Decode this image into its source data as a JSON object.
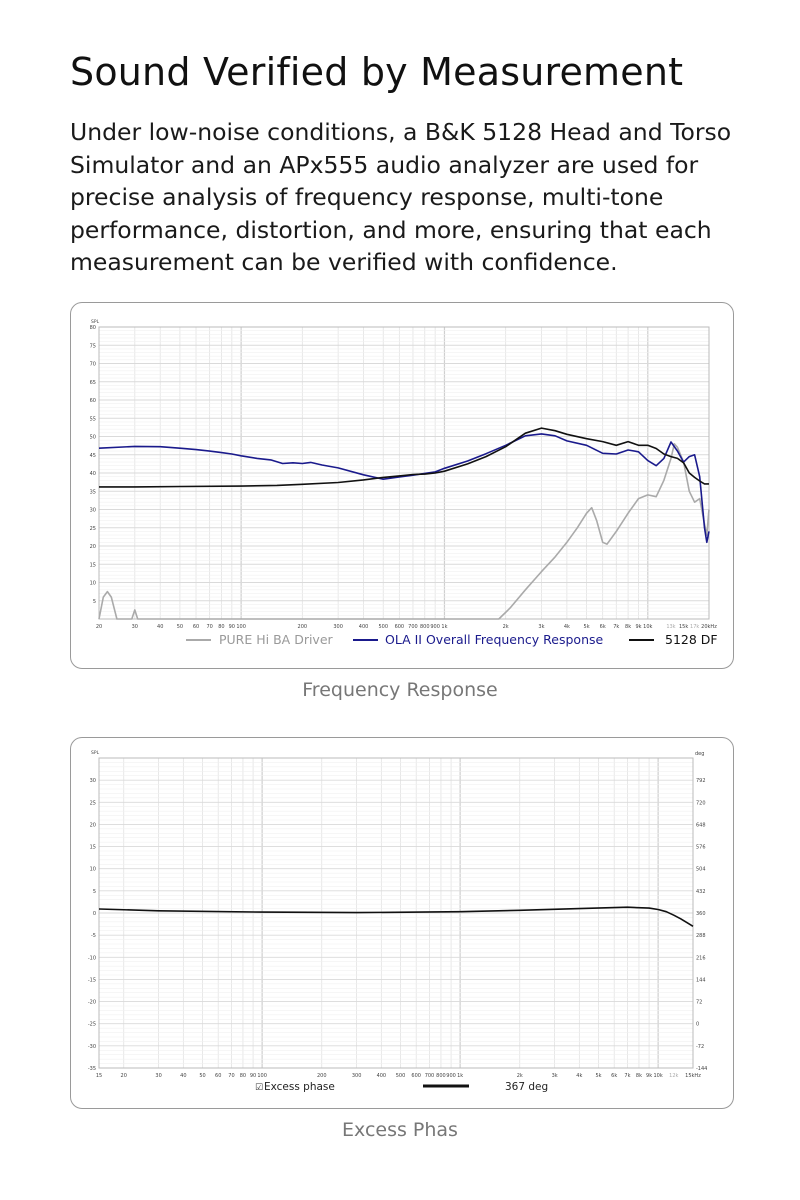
{
  "header": {
    "title": "Sound Verified by Measurement",
    "description": "Under low-noise conditions, a B&K 5128 Head and Torso Simulator and an APx555 audio analyzer are used for precise analysis of frequency response, multi-tone performance, distortion, and more, ensuring that each measurement can be verified with confidence."
  },
  "captions": {
    "chart1": "Frequency Response",
    "chart2": "Excess Phas"
  },
  "colors": {
    "pure": "#aaaaaa",
    "ola": "#1a1a8c",
    "df": "#111111",
    "grid": "#e2e2e2",
    "grid_major": "#cfcfcf"
  },
  "chart_data": [
    {
      "type": "line",
      "title": "",
      "ylabel": "SPL",
      "xlabel": "",
      "x_scale": "log",
      "xlim": [
        20,
        20000
      ],
      "ylim": [
        0,
        80
      ],
      "grid": true,
      "legend_position": "bottom",
      "x_ticks": [
        20,
        30,
        40,
        50,
        60,
        70,
        80,
        90,
        100,
        200,
        300,
        400,
        500,
        600,
        700,
        800,
        900,
        1000,
        2000,
        3000,
        4000,
        5000,
        6000,
        7000,
        8000,
        9000,
        10000,
        13000,
        15000,
        17000,
        20000
      ],
      "x_tick_labels": [
        "20",
        "30",
        "40",
        "50",
        "60",
        "70",
        "80",
        "90",
        "100",
        "200",
        "300",
        "400",
        "500",
        "600",
        "700",
        "800",
        "900",
        "1k",
        "2k",
        "3k",
        "4k",
        "5k",
        "6k",
        "7k",
        "8k",
        "9k",
        "10k",
        "13k",
        "15k",
        "17k",
        "20kHz"
      ],
      "y_ticks": [
        0,
        5,
        10,
        15,
        20,
        25,
        30,
        35,
        40,
        45,
        50,
        55,
        60,
        65,
        70,
        75,
        80
      ],
      "y_tick_labels": [
        "",
        "5",
        "10",
        "15",
        "20",
        "25",
        "30",
        "35",
        "40",
        "45",
        "50",
        "55",
        "60",
        "65",
        "70",
        "75",
        "80"
      ],
      "series": [
        {
          "name": "PURE Hi BA Driver",
          "color": "#aaaaaa",
          "points": [
            [
              20,
              0
            ],
            [
              21,
              6
            ],
            [
              22,
              7.5
            ],
            [
              23,
              6
            ],
            [
              24.5,
              0
            ],
            [
              29,
              0
            ],
            [
              30,
              2.5
            ],
            [
              31,
              0
            ],
            [
              1850,
              0
            ],
            [
              2100,
              3
            ],
            [
              2500,
              8
            ],
            [
              3000,
              13
            ],
            [
              3500,
              17
            ],
            [
              4000,
              21
            ],
            [
              4500,
              25
            ],
            [
              5000,
              29
            ],
            [
              5300,
              30.5
            ],
            [
              5600,
              27
            ],
            [
              6000,
              21
            ],
            [
              6300,
              20.5
            ],
            [
              7000,
              24
            ],
            [
              8000,
              29
            ],
            [
              9000,
              33
            ],
            [
              10000,
              34
            ],
            [
              11000,
              33.5
            ],
            [
              12000,
              38
            ],
            [
              13000,
              44
            ],
            [
              13500,
              48
            ],
            [
              14000,
              47
            ],
            [
              15000,
              43
            ],
            [
              16000,
              35
            ],
            [
              17000,
              32
            ],
            [
              18000,
              33
            ],
            [
              19000,
              26
            ],
            [
              19500,
              23
            ],
            [
              20000,
              30
            ]
          ]
        },
        {
          "name": "OLA II Overall Frequency Response",
          "color": "#1a1a8c",
          "points": [
            [
              20,
              46.8
            ],
            [
              30,
              47.3
            ],
            [
              40,
              47.2
            ],
            [
              50,
              46.8
            ],
            [
              60,
              46.4
            ],
            [
              70,
              46
            ],
            [
              80,
              45.6
            ],
            [
              90,
              45.2
            ],
            [
              100,
              44.7
            ],
            [
              120,
              44
            ],
            [
              140,
              43.6
            ],
            [
              160,
              42.6
            ],
            [
              180,
              42.8
            ],
            [
              200,
              42.6
            ],
            [
              220,
              42.9
            ],
            [
              250,
              42.2
            ],
            [
              300,
              41.4
            ],
            [
              400,
              39.5
            ],
            [
              500,
              38.3
            ],
            [
              600,
              38.9
            ],
            [
              700,
              39.4
            ],
            [
              800,
              39.9
            ],
            [
              900,
              40.3
            ],
            [
              1000,
              41.3
            ],
            [
              1300,
              43.3
            ],
            [
              1600,
              45.3
            ],
            [
              2000,
              47.6
            ],
            [
              2500,
              50.2
            ],
            [
              3000,
              50.7
            ],
            [
              3500,
              50.2
            ],
            [
              4000,
              48.8
            ],
            [
              5000,
              47.6
            ],
            [
              6000,
              45.4
            ],
            [
              7000,
              45.2
            ],
            [
              8000,
              46.3
            ],
            [
              9000,
              45.8
            ],
            [
              10000,
              43.4
            ],
            [
              11000,
              42
            ],
            [
              12000,
              44
            ],
            [
              13000,
              48.5
            ],
            [
              14000,
              46
            ],
            [
              15000,
              43
            ],
            [
              16000,
              44.5
            ],
            [
              17000,
              45
            ],
            [
              18000,
              39
            ],
            [
              19000,
              25
            ],
            [
              19500,
              21
            ],
            [
              20000,
              24
            ]
          ]
        },
        {
          "name": "5128 DF",
          "color": "#111111",
          "points": [
            [
              20,
              36.2
            ],
            [
              30,
              36.2
            ],
            [
              50,
              36.3
            ],
            [
              100,
              36.4
            ],
            [
              150,
              36.6
            ],
            [
              200,
              36.9
            ],
            [
              300,
              37.4
            ],
            [
              400,
              38.1
            ],
            [
              500,
              38.8
            ],
            [
              600,
              39.2
            ],
            [
              700,
              39.6
            ],
            [
              800,
              39.7
            ],
            [
              900,
              40
            ],
            [
              1000,
              40.5
            ],
            [
              1300,
              42.5
            ],
            [
              1600,
              44.5
            ],
            [
              2000,
              47.2
            ],
            [
              2500,
              50.9
            ],
            [
              3000,
              52.3
            ],
            [
              3500,
              51.6
            ],
            [
              4000,
              50.6
            ],
            [
              5000,
              49.4
            ],
            [
              6000,
              48.6
            ],
            [
              7000,
              47.6
            ],
            [
              8000,
              48.6
            ],
            [
              9000,
              47.6
            ],
            [
              10000,
              47.6
            ],
            [
              11000,
              46.7
            ],
            [
              12000,
              45.2
            ],
            [
              13000,
              44.5
            ],
            [
              14000,
              44
            ],
            [
              15000,
              42.8
            ],
            [
              16000,
              40
            ],
            [
              17000,
              38.8
            ],
            [
              18000,
              37.8
            ],
            [
              19000,
              37
            ],
            [
              20000,
              37
            ]
          ]
        }
      ]
    },
    {
      "type": "line",
      "title": "",
      "ylabel": "SPL",
      "y2label": "deg",
      "xlabel": "",
      "x_scale": "log",
      "xlim": [
        15,
        15000
      ],
      "ylim": [
        -35,
        35
      ],
      "grid": true,
      "legend_position": "bottom",
      "x_ticks": [
        15,
        20,
        30,
        40,
        50,
        60,
        70,
        80,
        90,
        100,
        200,
        300,
        400,
        500,
        600,
        700,
        800,
        900,
        1000,
        2000,
        3000,
        4000,
        5000,
        6000,
        7000,
        8000,
        9000,
        10000,
        12000,
        15000
      ],
      "x_tick_labels": [
        "15",
        "20",
        "30",
        "40",
        "50",
        "60",
        "70",
        "80",
        "90",
        "100",
        "200",
        "300",
        "400",
        "500",
        "600",
        "700",
        "800",
        "900",
        "1k",
        "2k",
        "3k",
        "4k",
        "5k",
        "6k",
        "7k",
        "8k",
        "9k",
        "10k",
        "12k",
        "15kHz"
      ],
      "y_ticks": [
        30,
        25,
        20,
        15,
        10,
        5,
        0,
        -5,
        -10,
        -15,
        -20,
        -25,
        -30,
        -35
      ],
      "y_tick_labels": [
        "30",
        "25",
        "20",
        "15",
        "10",
        "5",
        "0",
        "-5",
        "-10",
        "-15",
        "-20",
        "-25",
        "-30",
        "-35"
      ],
      "y2_tick_labels": [
        "792",
        "720",
        "648",
        "576",
        "504",
        "432",
        "360",
        "288",
        "216",
        "144",
        "72",
        "0",
        "-72",
        "-144"
      ],
      "series": [
        {
          "name": "Excess phase",
          "legend_checkbox": "☑",
          "legend_value": "367 deg",
          "color": "#111111",
          "points": [
            [
              15,
              0.9
            ],
            [
              30,
              0.5
            ],
            [
              100,
              0.2
            ],
            [
              300,
              0.1
            ],
            [
              1000,
              0.3
            ],
            [
              2000,
              0.6
            ],
            [
              4000,
              1
            ],
            [
              7000,
              1.3
            ],
            [
              9000,
              1.1
            ],
            [
              10000,
              0.8
            ],
            [
              11000,
              0.3
            ],
            [
              12000,
              -0.5
            ],
            [
              13000,
              -1.3
            ],
            [
              14000,
              -2.2
            ],
            [
              15000,
              -3
            ]
          ]
        }
      ]
    }
  ]
}
